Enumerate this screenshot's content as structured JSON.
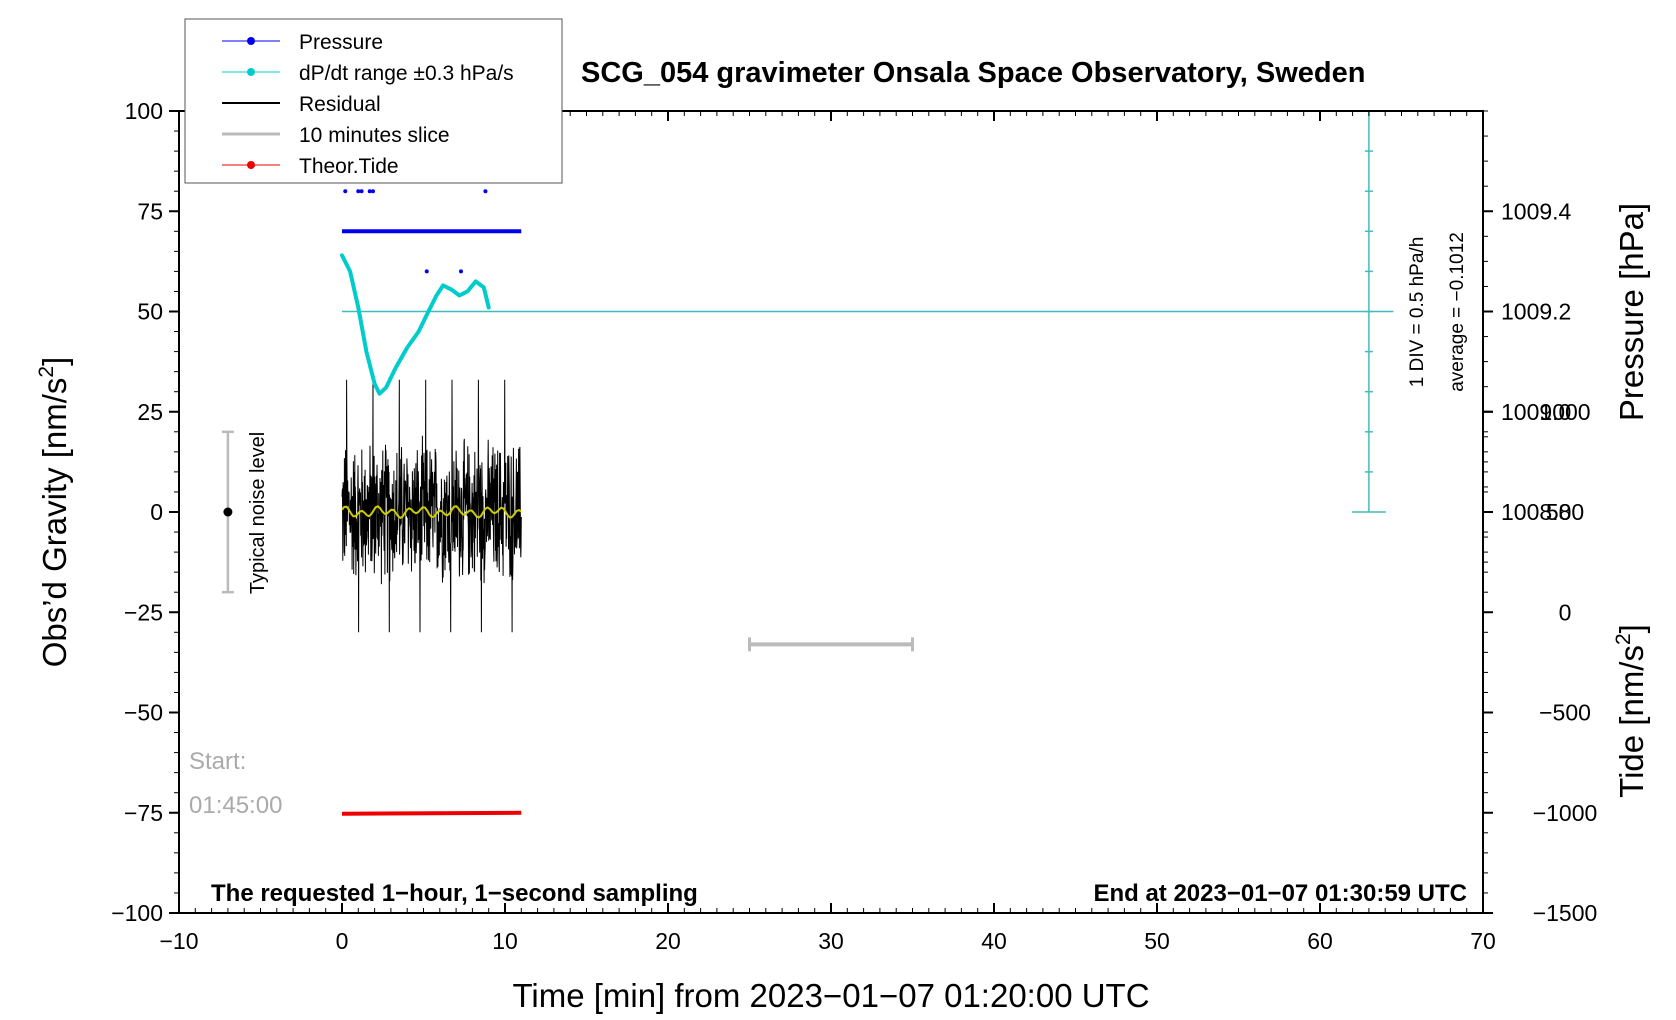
{
  "chart_data": {
    "type": "line",
    "title": "SCG_054 gravimeter Onsala Space Observatory, Sweden",
    "xlabel": "Time [min] from 2023−01−07 01:20:00 UTC",
    "ylabel_main": "Obs’d Gravity [nm/s",
    "ylabel_sup": "2",
    "ylabel_close": "]",
    "y2label_pressure": "Pressure [hPa]",
    "y2label_tide": "Tide [nm/s",
    "y2label_tide_sup": "2",
    "y2label_tide_close": "]",
    "xlim": [
      -10,
      70
    ],
    "ylim": [
      -100,
      100
    ],
    "x_ticks": [
      -10,
      0,
      10,
      20,
      30,
      40,
      50,
      60,
      70
    ],
    "x_tick_labels": [
      "−10",
      "0",
      "10",
      "20",
      "30",
      "40",
      "50",
      "60",
      "70"
    ],
    "y_ticks": [
      100,
      75,
      50,
      25,
      0,
      -25,
      -50,
      -75,
      -100
    ],
    "y_tick_labels": [
      "100",
      "75",
      "50",
      "25",
      "0",
      "−25",
      "−50",
      "−75",
      "−100"
    ],
    "pressure_ticks": [
      1009.4,
      1009.2,
      1009.0,
      1008.8
    ],
    "pressure_tick_labels": [
      "1009.4",
      "1009.2",
      "1009.0",
      "1008.8"
    ],
    "pressure_axis_map": {
      "value_at_gravity_100": 1009.6,
      "hpa_per_25_gravity": 0.2
    },
    "tide_ticks": [
      1000,
      500,
      0,
      -500,
      -1000,
      -1500
    ],
    "tide_tick_labels": [
      "1000",
      "500",
      "0",
      "−500",
      "−1000",
      "−1500"
    ],
    "tide_axis_map": {
      "value_at_gravity_minus100": -1500,
      "tide_per_gravity": 20
    },
    "legend": [
      {
        "label": "Pressure",
        "color": "#0000ee",
        "marker": true
      },
      {
        "label": "dP/dt range ±0.3 hPa/s",
        "color": "#00cccc",
        "marker": true
      },
      {
        "label": "Residual",
        "color": "#000000",
        "marker": false
      },
      {
        "label": "10 minutes slice",
        "color": "#bbbbbb",
        "marker": false
      },
      {
        "label": "Theor.Tide",
        "color": "#ee0000",
        "marker": true
      }
    ],
    "legend_position": "top-left",
    "series": [
      {
        "name": "Pressure",
        "color": "#0000ee",
        "main_level": 70,
        "main_range": [
          0,
          11
        ],
        "outliers": [
          [
            0.2,
            80
          ],
          [
            1.0,
            80
          ],
          [
            1.2,
            80
          ],
          [
            1.7,
            80
          ],
          [
            1.9,
            80
          ],
          [
            8.8,
            80
          ],
          [
            5.2,
            60
          ],
          [
            7.3,
            60
          ]
        ]
      },
      {
        "name": "dP/dt",
        "color": "#00cccc",
        "x": [
          0,
          0.5,
          1.0,
          1.5,
          2.0,
          2.3,
          2.7,
          3.3,
          4.0,
          4.7,
          5.3,
          5.8,
          6.2,
          6.7,
          7.2,
          7.7,
          8.2,
          8.7,
          9.0
        ],
        "y": [
          64,
          60,
          51,
          40,
          32,
          29.5,
          31,
          36,
          41,
          45,
          50,
          54,
          56.5,
          55.5,
          54,
          55,
          57.5,
          56,
          51
        ]
      },
      {
        "name": "Residual",
        "color": "#000000",
        "x_range": [
          0,
          11
        ],
        "amplitude": 18,
        "max": 33,
        "min": -30
      },
      {
        "name": "Residual smoothed",
        "color": "#cccc00",
        "level": 0
      },
      {
        "name": "Theor.Tide",
        "color": "#ee0000",
        "x": [
          0,
          11
        ],
        "tide": [
          -1005,
          -1000
        ]
      }
    ],
    "dpdt_reference_line": {
      "y": 50,
      "x_range": [
        0,
        64.5
      ],
      "color": "#44bbbb"
    },
    "dpdt_scale_bar": {
      "x": 63,
      "y_top": 100,
      "y_bottom": 0,
      "divisions": 10,
      "label": "1 DIV = 0.5 hPa/h",
      "average_label": "average = −0.1012"
    },
    "noise_bar": {
      "x": -7,
      "y_top": 20,
      "y_bottom": -20,
      "center": 0,
      "label": "Typical noise level"
    },
    "slice_bar": {
      "x_start": 25,
      "x_end": 35,
      "y": -33
    },
    "start_label": "Start:",
    "start_time": "01:45:00",
    "bottom_left_note": "The requested 1−hour, 1−second sampling",
    "bottom_right_note": "End at 2023−01−07 01:30:59 UTC"
  }
}
